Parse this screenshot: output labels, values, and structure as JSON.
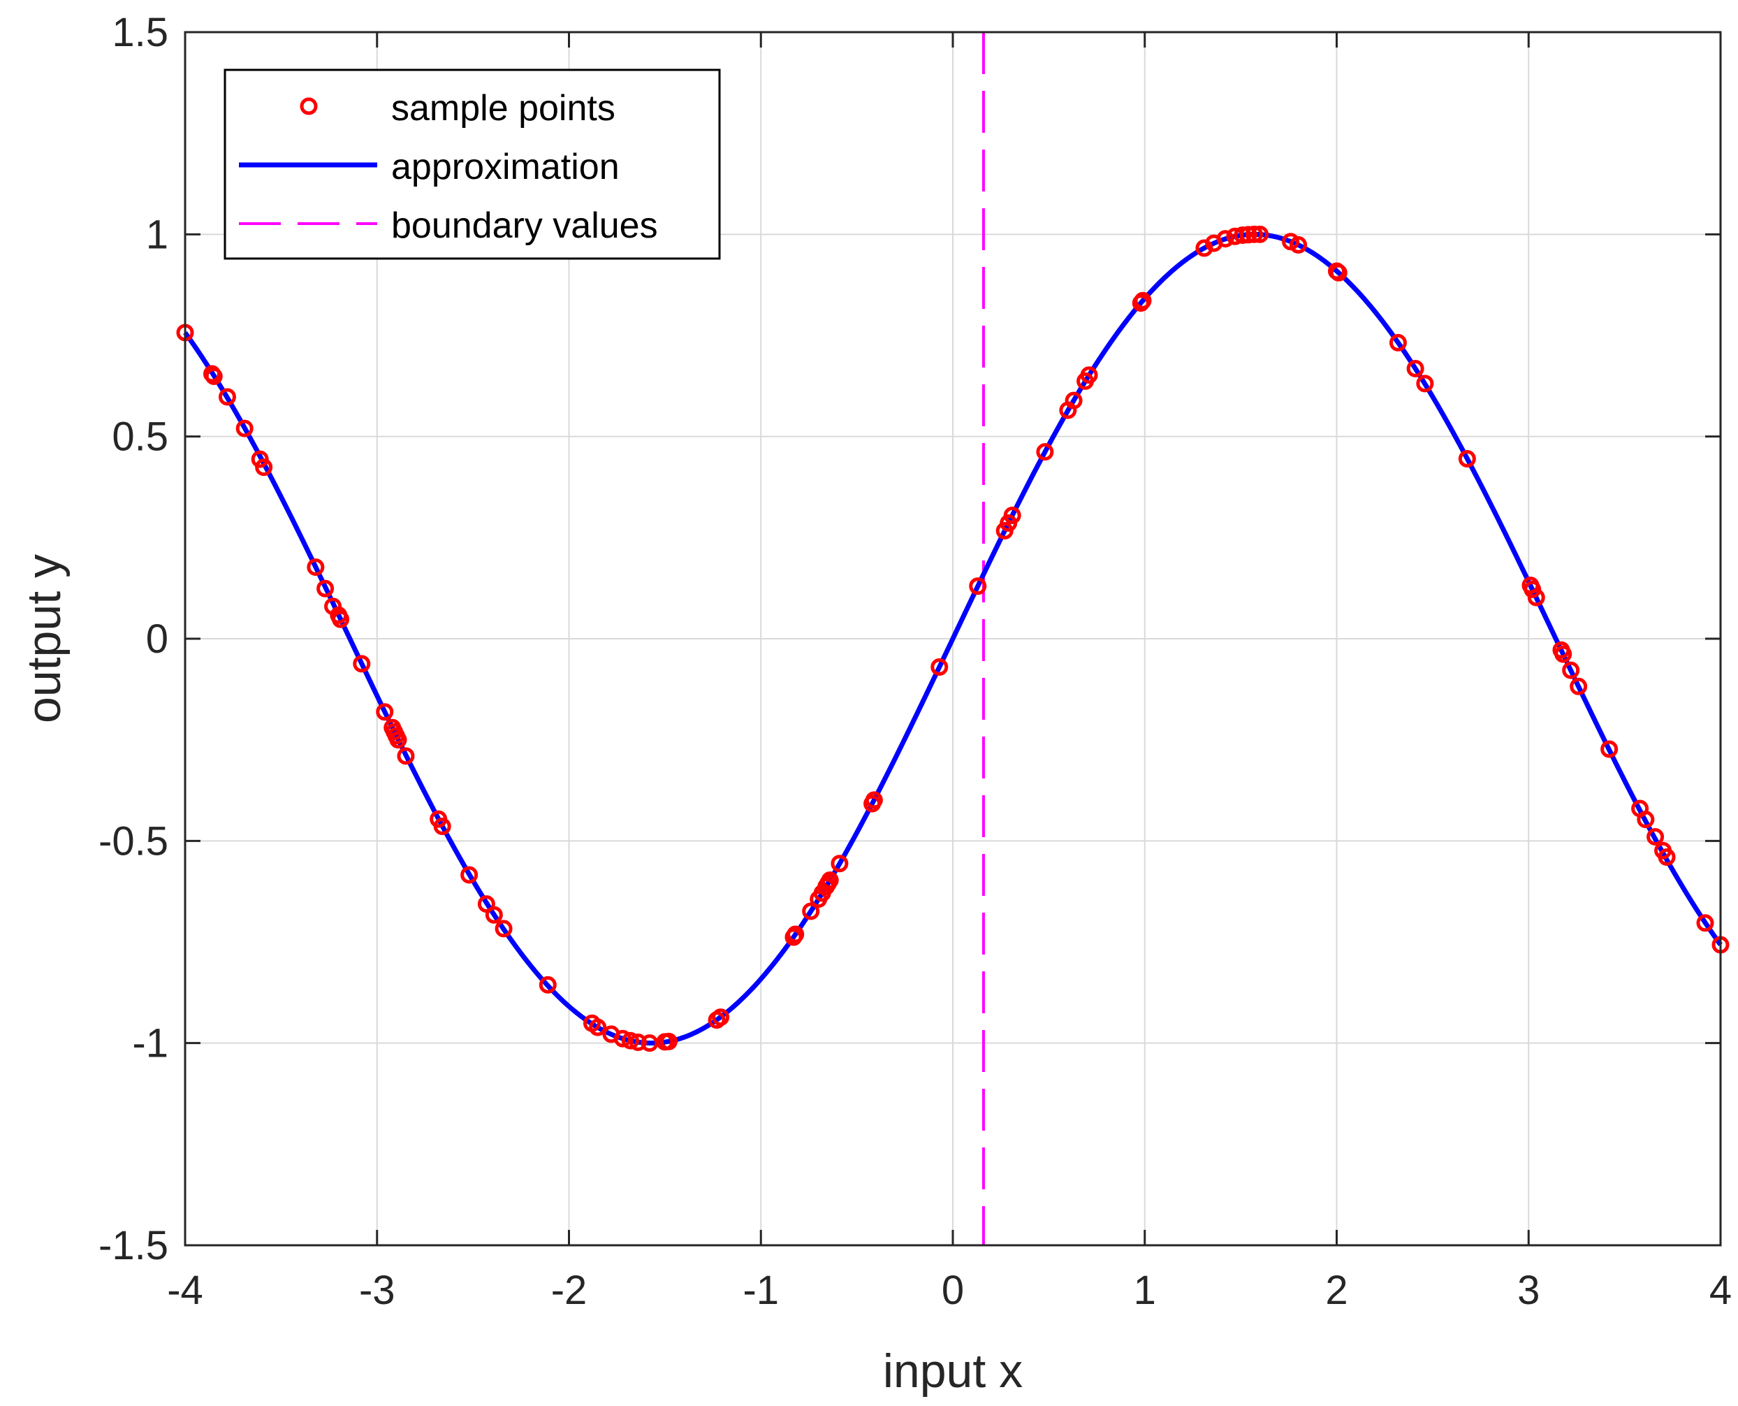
{
  "chart_data": {
    "type": "line",
    "xlabel": "input x",
    "ylabel": "output y",
    "xlim": [
      -4,
      4
    ],
    "ylim": [
      -1.5,
      1.5
    ],
    "xticks": [
      -4,
      -3,
      -2,
      -1,
      0,
      1,
      2,
      3,
      4
    ],
    "yticks": [
      -1.5,
      -1,
      -0.5,
      0,
      0.5,
      1,
      1.5
    ],
    "xtick_labels": [
      "-4",
      "-3",
      "-2",
      "-1",
      "0",
      "1",
      "2",
      "3",
      "4"
    ],
    "ytick_labels": [
      "-1.5",
      "-1",
      "-0.5",
      "0",
      "0.5",
      "1",
      "1.5"
    ],
    "grid": true,
    "legend_position": "top-left",
    "colors": {
      "samples": "#ff0000",
      "approximation": "#0000ff",
      "boundary": "#ff00ff",
      "grid": "#d9d9d9",
      "axes": "#262626"
    },
    "series": [
      {
        "name": "sample points",
        "kind": "scatter",
        "x": [
          -4.0,
          -3.86,
          -3.85,
          -3.78,
          -3.69,
          -3.61,
          -3.59,
          -3.32,
          -3.27,
          -3.23,
          -3.2,
          -3.19,
          -3.08,
          -2.96,
          -2.92,
          -2.91,
          -2.9,
          -2.89,
          -2.85,
          -2.68,
          -2.66,
          -2.52,
          -2.43,
          -2.39,
          -2.34,
          -2.11,
          -1.88,
          -1.85,
          -1.78,
          -1.72,
          -1.68,
          -1.64,
          -1.58,
          -1.5,
          -1.48,
          -1.23,
          -1.21,
          -0.83,
          -0.82,
          -0.74,
          -0.7,
          -0.68,
          -0.66,
          -0.65,
          -0.64,
          -0.59,
          -0.42,
          -0.41,
          -0.07,
          0.13,
          0.27,
          0.29,
          0.31,
          0.48,
          0.6,
          0.63,
          0.69,
          0.71,
          0.98,
          0.99,
          1.31,
          1.36,
          1.42,
          1.47,
          1.51,
          1.54,
          1.57,
          1.6,
          1.76,
          1.8,
          2.0,
          2.01,
          2.32,
          2.41,
          2.46,
          2.68,
          3.01,
          3.02,
          3.04,
          3.17,
          3.18,
          3.22,
          3.26,
          3.42,
          3.58,
          3.61,
          3.66,
          3.7,
          3.72,
          3.92,
          4.0
        ],
        "y": [
          0.757,
          0.655,
          0.649,
          0.598,
          0.52,
          0.444,
          0.424,
          0.177,
          0.124,
          0.08,
          0.058,
          0.048,
          -0.062,
          -0.181,
          -0.22,
          -0.23,
          -0.24,
          -0.25,
          -0.29,
          -0.446,
          -0.464,
          -0.584,
          -0.656,
          -0.683,
          -0.717,
          -0.856,
          -0.951,
          -0.961,
          -0.978,
          -0.989,
          -0.994,
          -0.998,
          -1.0,
          -0.997,
          -0.996,
          -0.943,
          -0.936,
          -0.738,
          -0.731,
          -0.674,
          -0.644,
          -0.629,
          -0.613,
          -0.605,
          -0.597,
          -0.556,
          -0.408,
          -0.399,
          -0.07,
          0.13,
          0.267,
          0.286,
          0.305,
          0.462,
          0.565,
          0.589,
          0.637,
          0.652,
          0.83,
          0.836,
          0.966,
          0.978,
          0.989,
          0.995,
          0.998,
          0.999,
          1.0,
          1.0,
          0.982,
          0.974,
          0.909,
          0.905,
          0.732,
          0.668,
          0.631,
          0.445,
          0.132,
          0.122,
          0.102,
          -0.028,
          -0.038,
          -0.078,
          -0.118,
          -0.273,
          -0.42,
          -0.447,
          -0.49,
          -0.524,
          -0.54,
          -0.703,
          -0.757
        ]
      },
      {
        "name": "approximation",
        "kind": "line",
        "function": "sin(x)",
        "x_range": [
          -4,
          4
        ]
      },
      {
        "name": "boundary values",
        "kind": "vline",
        "x": 0.16
      }
    ]
  }
}
